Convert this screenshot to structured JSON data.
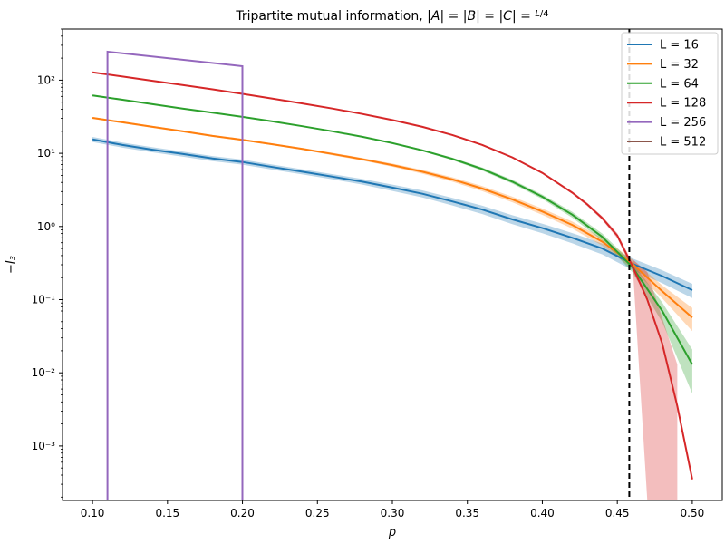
{
  "chart_data": {
    "type": "line",
    "title": "Tripartite mutual information, |A| = |B| = |C| = L/4",
    "xlabel": "p",
    "ylabel": "−I₃",
    "xlim": [
      0.08,
      0.52
    ],
    "ylim": [
      0.00018,
      500
    ],
    "yscale": "log",
    "grid": false,
    "legend_position": "top-right",
    "vline": {
      "x": 0.458,
      "style": "dashed",
      "color": "#000000"
    },
    "x_ticks": [
      "0.10",
      "0.15",
      "0.20",
      "0.25",
      "0.30",
      "0.35",
      "0.40",
      "0.45",
      "0.50"
    ],
    "y_ticks": [
      "10⁻³",
      "10⁻²",
      "10⁻¹",
      "10⁰",
      "10¹",
      "10²"
    ],
    "series": [
      {
        "name": "L = 16",
        "color": "#1f77b4",
        "x": [
          0.1,
          0.12,
          0.14,
          0.16,
          0.18,
          0.2,
          0.22,
          0.24,
          0.26,
          0.28,
          0.3,
          0.32,
          0.34,
          0.36,
          0.38,
          0.4,
          0.42,
          0.44,
          0.46,
          0.48,
          0.5
        ],
        "y": [
          15.5,
          13.0,
          11.2,
          9.8,
          8.5,
          7.6,
          6.5,
          5.6,
          4.8,
          4.1,
          3.4,
          2.8,
          2.2,
          1.7,
          1.25,
          0.95,
          0.7,
          0.5,
          0.31,
          0.21,
          0.135
        ],
        "band": [
          0.08,
          0.08,
          0.08,
          0.08,
          0.08,
          0.08,
          0.08,
          0.08,
          0.08,
          0.09,
          0.1,
          0.11,
          0.12,
          0.13,
          0.14,
          0.15,
          0.16,
          0.17,
          0.18,
          0.2,
          0.22
        ]
      },
      {
        "name": "L = 32",
        "color": "#ff7f0e",
        "x": [
          0.1,
          0.12,
          0.14,
          0.16,
          0.18,
          0.2,
          0.22,
          0.24,
          0.26,
          0.28,
          0.3,
          0.32,
          0.34,
          0.36,
          0.38,
          0.4,
          0.42,
          0.44,
          0.46,
          0.48,
          0.5
        ],
        "y": [
          30.5,
          26.5,
          23.0,
          20.0,
          17.3,
          15.3,
          13.3,
          11.5,
          9.8,
          8.3,
          6.9,
          5.6,
          4.4,
          3.3,
          2.35,
          1.6,
          1.05,
          0.62,
          0.31,
          0.13,
          0.057
        ],
        "band": [
          0.03,
          0.03,
          0.03,
          0.03,
          0.03,
          0.03,
          0.03,
          0.03,
          0.04,
          0.04,
          0.05,
          0.06,
          0.07,
          0.08,
          0.09,
          0.1,
          0.11,
          0.12,
          0.14,
          0.2,
          0.35
        ]
      },
      {
        "name": "L = 64",
        "color": "#2ca02c",
        "x": [
          0.1,
          0.12,
          0.14,
          0.16,
          0.18,
          0.2,
          0.22,
          0.24,
          0.26,
          0.28,
          0.3,
          0.32,
          0.34,
          0.36,
          0.38,
          0.4,
          0.42,
          0.44,
          0.46,
          0.48,
          0.5
        ],
        "y": [
          62.0,
          54.0,
          47.0,
          41.0,
          36.0,
          31.5,
          27.3,
          23.5,
          20.0,
          16.8,
          13.8,
          11.0,
          8.4,
          6.1,
          4.1,
          2.55,
          1.45,
          0.72,
          0.28,
          0.07,
          0.013
        ],
        "band": [
          0.02,
          0.02,
          0.02,
          0.02,
          0.02,
          0.02,
          0.02,
          0.02,
          0.02,
          0.02,
          0.03,
          0.03,
          0.04,
          0.05,
          0.06,
          0.07,
          0.09,
          0.11,
          0.15,
          0.3,
          0.6
        ]
      },
      {
        "name": "L = 128",
        "color": "#d62728",
        "x": [
          0.1,
          0.12,
          0.14,
          0.16,
          0.18,
          0.2,
          0.22,
          0.24,
          0.26,
          0.28,
          0.3,
          0.32,
          0.34,
          0.36,
          0.38,
          0.4,
          0.42,
          0.43,
          0.44,
          0.45,
          0.46,
          0.47,
          0.48,
          0.49,
          0.5
        ],
        "y": [
          128.0,
          112.0,
          98.0,
          86.0,
          75.0,
          65.0,
          56.0,
          48.0,
          41.0,
          34.5,
          28.5,
          23.0,
          17.8,
          13.0,
          8.8,
          5.4,
          2.9,
          2.0,
          1.3,
          0.75,
          0.29,
          0.1,
          0.025,
          0.0035,
          0.00035
        ],
        "band": [
          0.01,
          0.01,
          0.01,
          0.01,
          0.01,
          0.01,
          0.01,
          0.01,
          0.01,
          0.01,
          0.01,
          0.01,
          0.02,
          0.02,
          0.02,
          0.03,
          0.04,
          0.05,
          0.06,
          0.08,
          0.12,
          0,
          0,
          0,
          0
        ]
      },
      {
        "name": "L = 256",
        "color": "#9467bd",
        "x": [
          0.11,
          0.11,
          0.2,
          0.2
        ],
        "y": [
          0.00018,
          245.0,
          155.0,
          0.00018
        ],
        "band": []
      },
      {
        "name": "L = 512",
        "color": "#8c564b",
        "x": [],
        "y": [],
        "band": []
      }
    ],
    "red_band_drop": {
      "x": [
        0.46,
        0.47,
        0.47,
        0.49,
        0.49
      ],
      "upper": [
        0.36,
        0.24,
        0.24,
        0.013,
        0.003
      ]
    }
  }
}
